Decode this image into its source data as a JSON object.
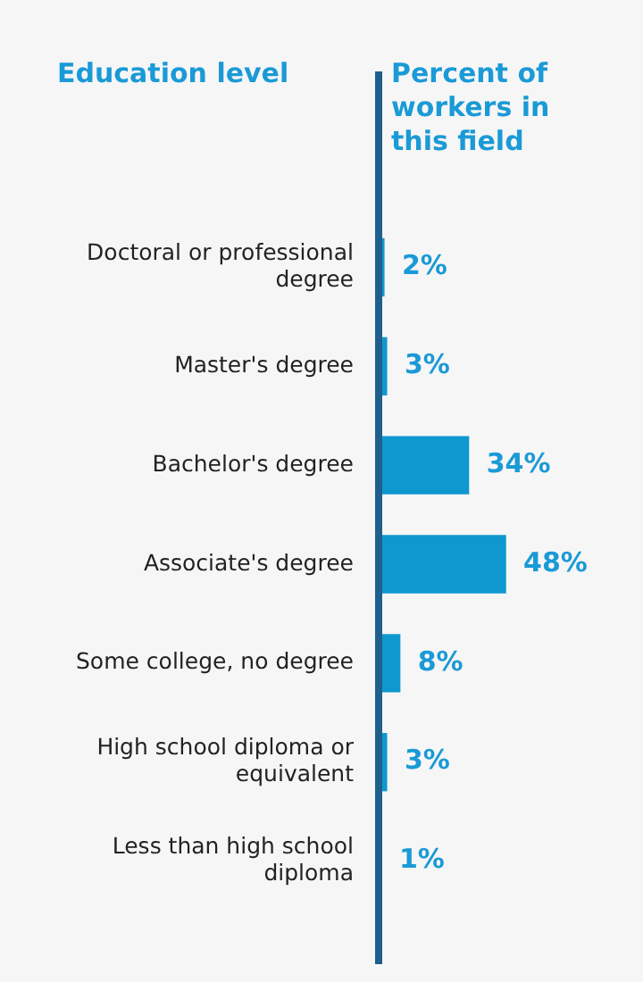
{
  "chart_data": {
    "type": "bar",
    "orientation": "horizontal",
    "ylabel": "Education level",
    "xlabel": "Percent of workers in this field",
    "categories": [
      "Doctoral or professional degree",
      "Master's degree",
      "Bachelor's degree",
      "Associate's degree",
      "Some college, no degree",
      "High school diploma or equivalent",
      "Less than high school diploma"
    ],
    "values": [
      2,
      3,
      34,
      48,
      8,
      3,
      1
    ],
    "value_labels": [
      "2%",
      "3%",
      "34%",
      "48%",
      "8%",
      "3%",
      "1%"
    ],
    "color": "#0f98cf",
    "legend": false,
    "tick_labels": "y"
  }
}
